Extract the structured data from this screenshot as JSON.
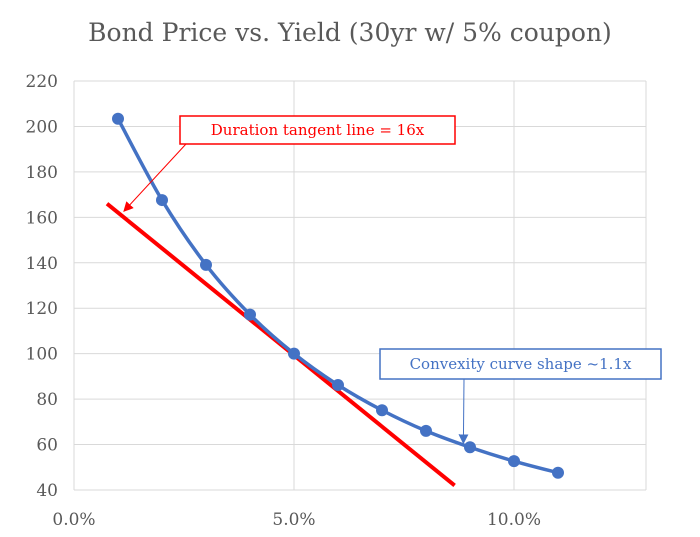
{
  "chart_data": {
    "type": "line",
    "title": "Bond Price vs. Yield (30yr w/ 5% coupon)",
    "xlabel": "",
    "ylabel": "",
    "xlim": [
      0,
      0.13
    ],
    "ylim": [
      40,
      220
    ],
    "x_ticks": [
      0,
      0.05,
      0.1
    ],
    "x_tick_labels": [
      "0.0%",
      "5.0%",
      "10.0%"
    ],
    "y_ticks": [
      40,
      60,
      80,
      100,
      120,
      140,
      160,
      180,
      200,
      220
    ],
    "y_tick_labels": [
      "40",
      "60",
      "80",
      "100",
      "120",
      "140",
      "160",
      "180",
      "200",
      "220"
    ],
    "grid": true,
    "series": [
      {
        "color": "#4472C4",
        "marker": "circle",
        "x": [
          0.01,
          0.02,
          0.03,
          0.04,
          0.05,
          0.06,
          0.07,
          0.08,
          0.09,
          0.1,
          0.11
        ],
        "y": [
          203.4,
          167.6,
          139.1,
          117.2,
          100.0,
          86.2,
          75.1,
          66.0,
          58.8,
          52.7,
          47.6
        ]
      }
    ],
    "tangent_line": {
      "color": "#FF0000",
      "x": [
        0.0075,
        0.0865
      ],
      "y": [
        166,
        42
      ]
    },
    "annotations": [
      {
        "text": "Duration tangent line = 16x",
        "color": "#FF0000",
        "border_color": "#FF0000",
        "arrow_to": [
          0.0115,
          163
        ]
      },
      {
        "text": "Convexity curve shape ~1.1x",
        "color": "#4472C4",
        "border_color": "#4472C4",
        "arrow_to": [
          0.0885,
          61
        ]
      }
    ]
  }
}
